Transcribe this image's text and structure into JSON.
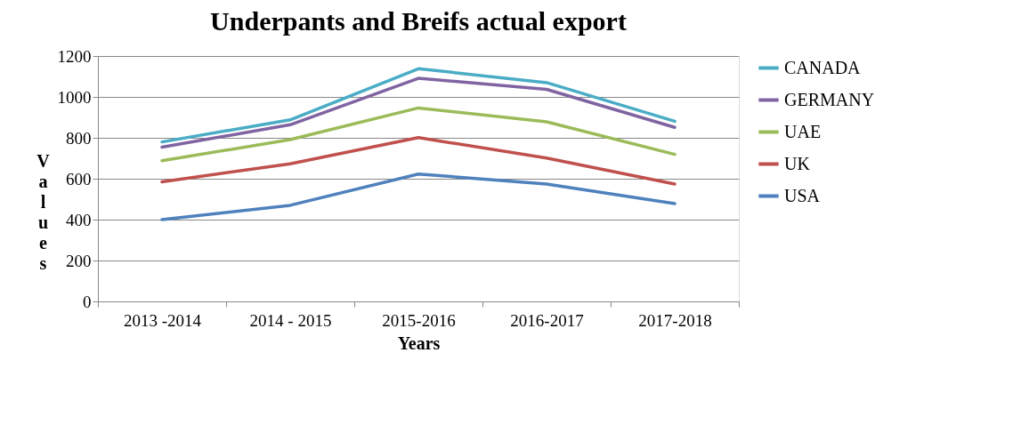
{
  "chart_data": {
    "type": "line",
    "title": "Underpants and Breifs actual export",
    "xlabel": "Years",
    "ylabel": "Values",
    "categories": [
      "2013 -2014",
      "2014 - 2015",
      "2015-2016",
      "2016-2017",
      "2017-2018"
    ],
    "series": [
      {
        "name": "CANADA",
        "color": "#4bacc6",
        "values": [
          780,
          888,
          1138,
          1070,
          881
        ]
      },
      {
        "name": "GERMANY",
        "color": "#8064a2",
        "values": [
          754,
          864,
          1091,
          1037,
          851
        ]
      },
      {
        "name": "UAE",
        "color": "#9bbb59",
        "values": [
          688,
          791,
          946,
          878,
          719
        ]
      },
      {
        "name": "UK",
        "color": "#c0504d",
        "values": [
          585,
          673,
          801,
          701,
          574
        ]
      },
      {
        "name": "USA",
        "color": "#4f81bd",
        "values": [
          400,
          470,
          623,
          574,
          478
        ]
      }
    ],
    "ylim": [
      0,
      1200
    ],
    "yticks": [
      0,
      200,
      400,
      600,
      800,
      1000,
      1200
    ],
    "grid": "y",
    "legend": "right",
    "marker": "none",
    "line_style": "solid"
  }
}
